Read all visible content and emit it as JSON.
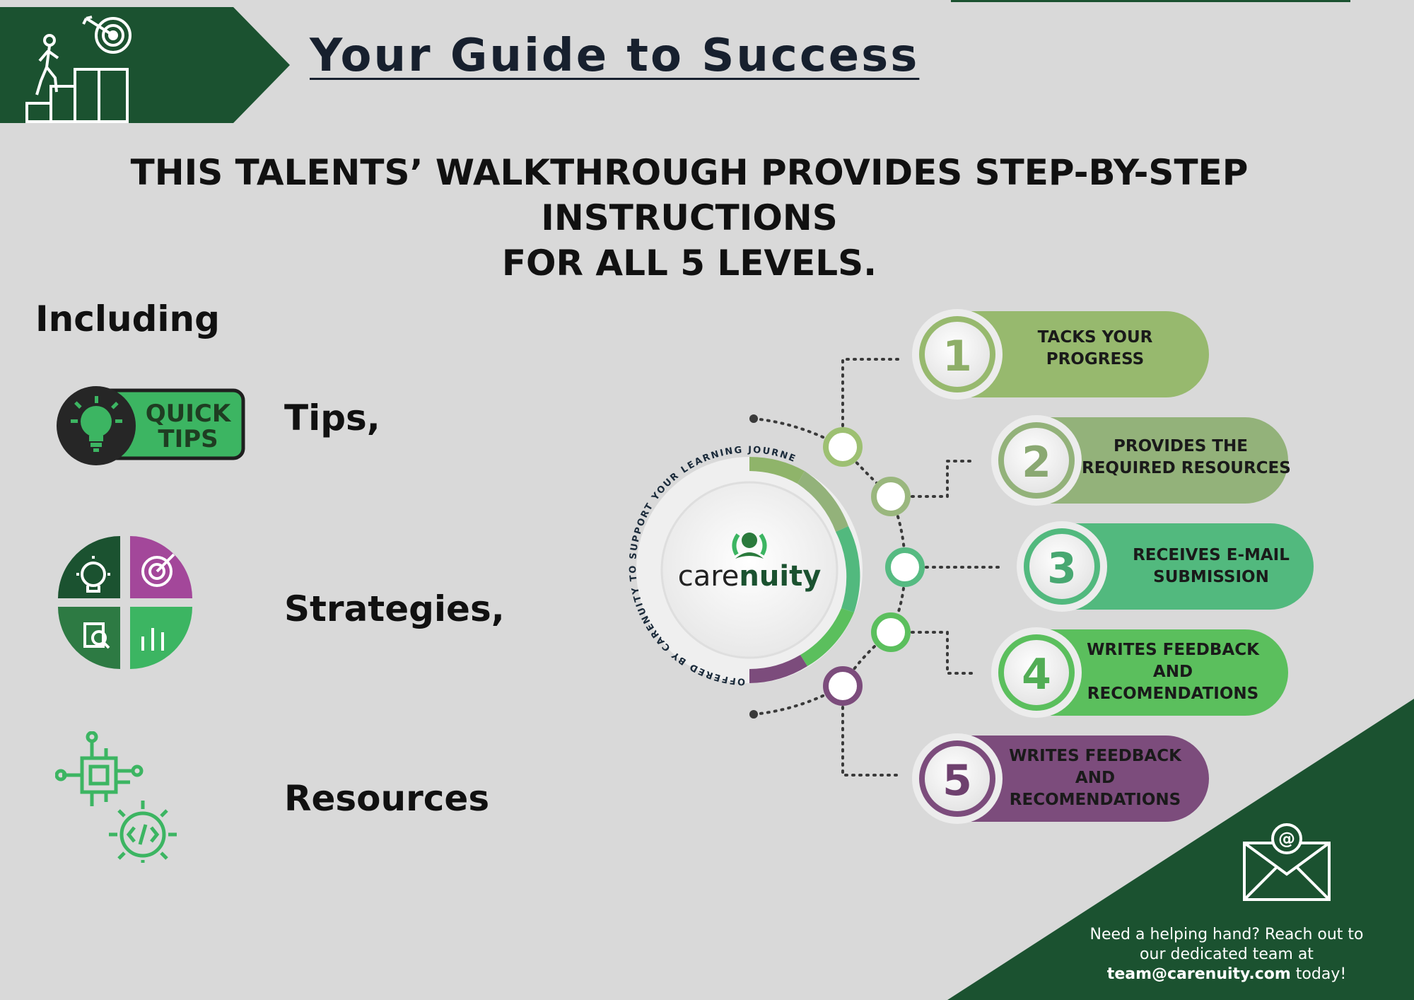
{
  "header": {
    "title": "Your Guide to Success",
    "subtitle_line1": "THIS TALENTS’ WALKTHROUGH PROVIDES STEP-BY-STEP INSTRUCTIONS",
    "subtitle_line2": "FOR ALL 5 LEVELS."
  },
  "intro": {
    "including": "Including",
    "quick_tips_badge": [
      "QUICK",
      "TIPS"
    ],
    "items": [
      "Tips,",
      "Strategies,",
      "Resources"
    ]
  },
  "hub": {
    "logo_text_light": "care",
    "logo_text_bold": "nuity",
    "ring_text": "OFFERED BY CARENUITY TO SUPPORT YOUR LEARNING JOURNEY."
  },
  "steps": [
    {
      "number": "1",
      "lines": [
        "TACKS YOUR",
        "PROGRESS"
      ],
      "color": "#97b96e"
    },
    {
      "number": "2",
      "lines": [
        "PROVIDES THE",
        "REQUIRED RESOURCES"
      ],
      "color": "#93b27a"
    },
    {
      "number": "3",
      "lines": [
        "RECEIVES E-MAIL",
        "SUBMISSION"
      ],
      "color": "#52b97e"
    },
    {
      "number": "4",
      "lines": [
        "WRITES FEEDBACK",
        "AND",
        "RECOMENDATIONS"
      ],
      "color": "#5bbf5d"
    },
    {
      "number": "5",
      "lines": [
        "WRITES FEEDBACK",
        "AND",
        "RECOMENDATIONS"
      ],
      "color": "#7c4c7c"
    }
  ],
  "footer": {
    "help_line1": "Need a helping hand? Reach out to",
    "help_line2": "our dedicated team at",
    "email": "team@carenuity.com",
    "help_suffix": " today!"
  },
  "colors": {
    "dark_green": "#1b5230",
    "bright_green": "#3cb562",
    "purple": "#a3479a",
    "background": "#d9d9d9"
  },
  "icons": [
    "stairs-target-icon",
    "lightbulb-icon",
    "strategy-quadrant-icon",
    "chip-gear-icon",
    "email-at-icon"
  ]
}
